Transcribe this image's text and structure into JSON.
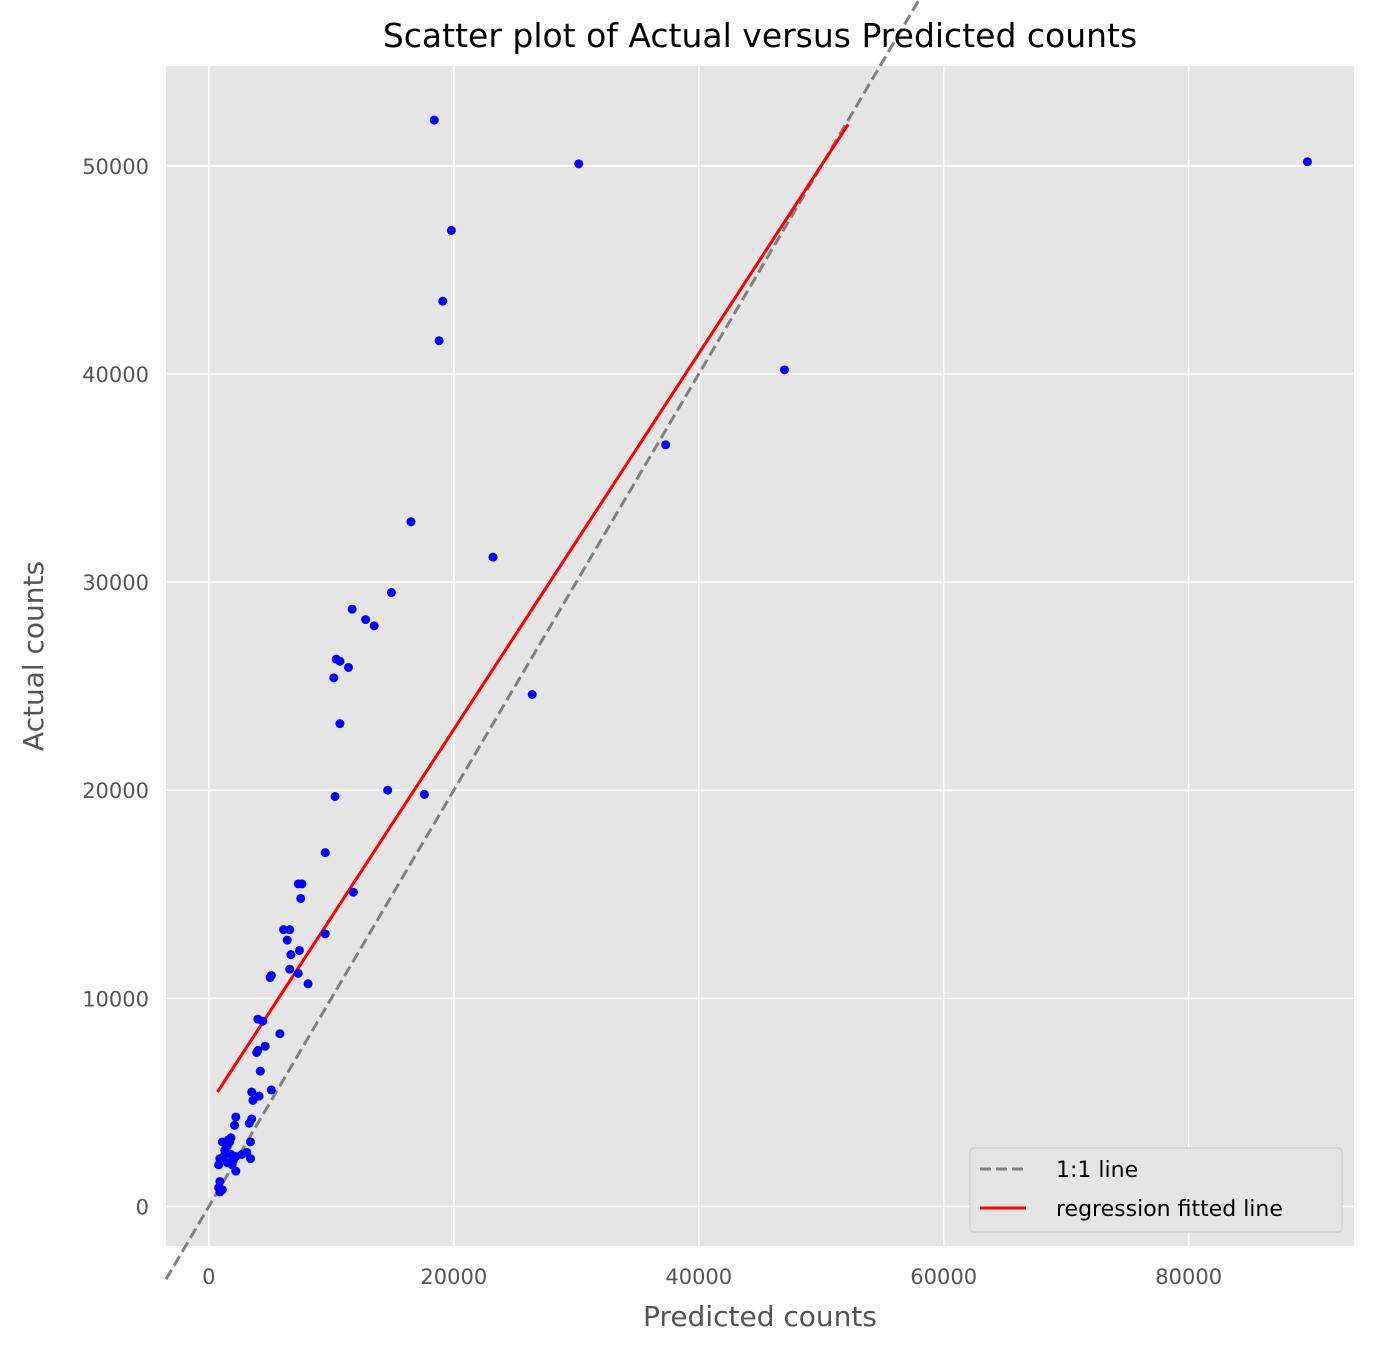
{
  "chart_data": {
    "type": "scatter",
    "title": "Scatter plot of Actual versus Predicted counts",
    "xlabel": "Predicted counts",
    "ylabel": "Actual counts",
    "xlim": [
      -3500,
      93500
    ],
    "ylim": [
      -1900,
      54800
    ],
    "xticks": [
      0,
      20000,
      40000,
      60000,
      80000
    ],
    "yticks": [
      0,
      10000,
      20000,
      30000,
      40000,
      50000
    ],
    "xtick_labels": [
      "0",
      "20000",
      "40000",
      "60000",
      "80000"
    ],
    "ytick_labels": [
      "0",
      "10000",
      "20000",
      "30000",
      "40000",
      "50000"
    ],
    "grid": true,
    "legend_position": "lower-right",
    "colors": {
      "background": "#e5e5e5",
      "grid": "#ffffff",
      "points": "#0000ff",
      "identity_line": "#808080",
      "regression_line": "#ff0000"
    },
    "series": [
      {
        "kind": "points",
        "x": [
          18400,
          30200,
          19800,
          19100,
          18800,
          47000,
          37300,
          89700,
          16500,
          23200,
          14900,
          11700,
          12800,
          13500,
          10400,
          10700,
          11400,
          10200,
          26400,
          10700,
          14600,
          17600,
          10300,
          9500,
          7300,
          7600,
          7500,
          11800,
          6600,
          6100,
          9500,
          6400,
          7400,
          6700,
          6600,
          7300,
          8100,
          5100,
          5000,
          4000,
          4400,
          5800,
          4600,
          4000,
          3900,
          4200,
          5100,
          4100,
          3500,
          3600,
          3500,
          3300,
          2200,
          2100,
          1800,
          1700,
          1600,
          1100,
          1500,
          1300,
          1800,
          2200,
          3100,
          2700,
          3400,
          1200,
          900,
          800,
          1500,
          1900,
          2000,
          3400,
          2200,
          900,
          800,
          1100,
          900
        ],
        "y": [
          52200,
          50100,
          46900,
          43500,
          41600,
          40200,
          36600,
          50200,
          32900,
          31200,
          29500,
          28700,
          28200,
          27900,
          26300,
          26200,
          25900,
          25400,
          24600,
          23200,
          20000,
          19800,
          19700,
          17000,
          15500,
          15500,
          14800,
          15100,
          13300,
          13300,
          13100,
          12800,
          12300,
          12100,
          11400,
          11200,
          10700,
          11100,
          11000,
          9000,
          8900,
          8300,
          7700,
          7500,
          7400,
          6500,
          5600,
          5300,
          5500,
          5100,
          4200,
          4000,
          4300,
          3900,
          3300,
          3100,
          3200,
          3100,
          2900,
          2700,
          2500,
          2400,
          2600,
          2500,
          2300,
          2400,
          2300,
          2000,
          2100,
          2000,
          2200,
          3100,
          1700,
          1200,
          900,
          800,
          700
        ]
      },
      {
        "name": "1:1 line",
        "kind": "line",
        "style": "dashed",
        "x": [
          -3500,
          93500
        ],
        "y": [
          -3500,
          93500
        ]
      },
      {
        "name": "regression fitted line",
        "kind": "line",
        "style": "solid",
        "x": [
          700,
          52200
        ],
        "y": [
          5500,
          52000
        ]
      }
    ]
  }
}
